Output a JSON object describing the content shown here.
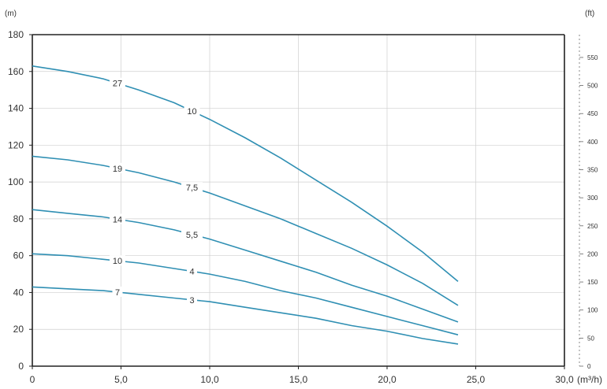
{
  "chart_data": {
    "type": "line",
    "y_unit_left": "(m)",
    "y_unit_right": "(ft)",
    "x_unit": "(m³/h)",
    "xlim": [
      0,
      30
    ],
    "ylim": [
      0,
      180
    ],
    "y2lim": [
      0,
      590.6
    ],
    "x_ticks": [
      "0",
      "5,0",
      "10,0",
      "15,0",
      "20,0",
      "25,0",
      "30,0"
    ],
    "x_tick_values": [
      0,
      5,
      10,
      15,
      20,
      25,
      30
    ],
    "y_ticks": [
      0,
      20,
      40,
      60,
      80,
      100,
      120,
      140,
      160,
      180
    ],
    "y2_ticks": [
      0,
      50,
      100,
      150,
      200,
      250,
      300,
      350,
      400,
      450,
      500,
      550
    ],
    "grid": true,
    "series": [
      {
        "x": [
          0,
          2,
          4,
          6,
          8,
          10,
          12,
          14,
          16,
          18,
          20,
          22,
          24
        ],
        "y": [
          163,
          160,
          156,
          150,
          143,
          134,
          124,
          113,
          101,
          89,
          76,
          62,
          46
        ],
        "labels": [
          {
            "text": "27",
            "x": 4.8
          },
          {
            "text": "10",
            "x": 9.0
          }
        ]
      },
      {
        "x": [
          0,
          2,
          4,
          6,
          8,
          10,
          12,
          14,
          16,
          18,
          20,
          22,
          24
        ],
        "y": [
          114,
          112,
          109,
          105,
          100,
          94,
          87,
          80,
          72,
          64,
          55,
          45,
          33
        ],
        "labels": [
          {
            "text": "19",
            "x": 4.8
          },
          {
            "text": "7,5",
            "x": 9.0
          }
        ]
      },
      {
        "x": [
          0,
          2,
          4,
          6,
          8,
          10,
          12,
          14,
          16,
          18,
          20,
          22,
          24
        ],
        "y": [
          85,
          83,
          81,
          78,
          74,
          69,
          63,
          57,
          51,
          44,
          38,
          31,
          24
        ],
        "labels": [
          {
            "text": "14",
            "x": 4.8
          },
          {
            "text": "5,5",
            "x": 9.0
          }
        ]
      },
      {
        "x": [
          0,
          2,
          4,
          6,
          8,
          10,
          12,
          14,
          16,
          18,
          20,
          22,
          24
        ],
        "y": [
          61,
          60,
          58,
          56,
          53,
          50,
          46,
          41,
          37,
          32,
          27,
          22,
          17
        ],
        "labels": [
          {
            "text": "10",
            "x": 4.8
          },
          {
            "text": "4",
            "x": 9.0
          }
        ]
      },
      {
        "x": [
          0,
          2,
          4,
          6,
          8,
          10,
          12,
          14,
          16,
          18,
          20,
          22,
          24
        ],
        "y": [
          43,
          42,
          41,
          39,
          37,
          35,
          32,
          29,
          26,
          22,
          19,
          15,
          12
        ],
        "labels": [
          {
            "text": "7",
            "x": 4.8
          },
          {
            "text": "3",
            "x": 9.0
          }
        ]
      }
    ],
    "colors": {
      "curve": "#2f8fb3",
      "grid": "#cfcfcf",
      "axis": "#222222",
      "text": "#333333"
    }
  }
}
